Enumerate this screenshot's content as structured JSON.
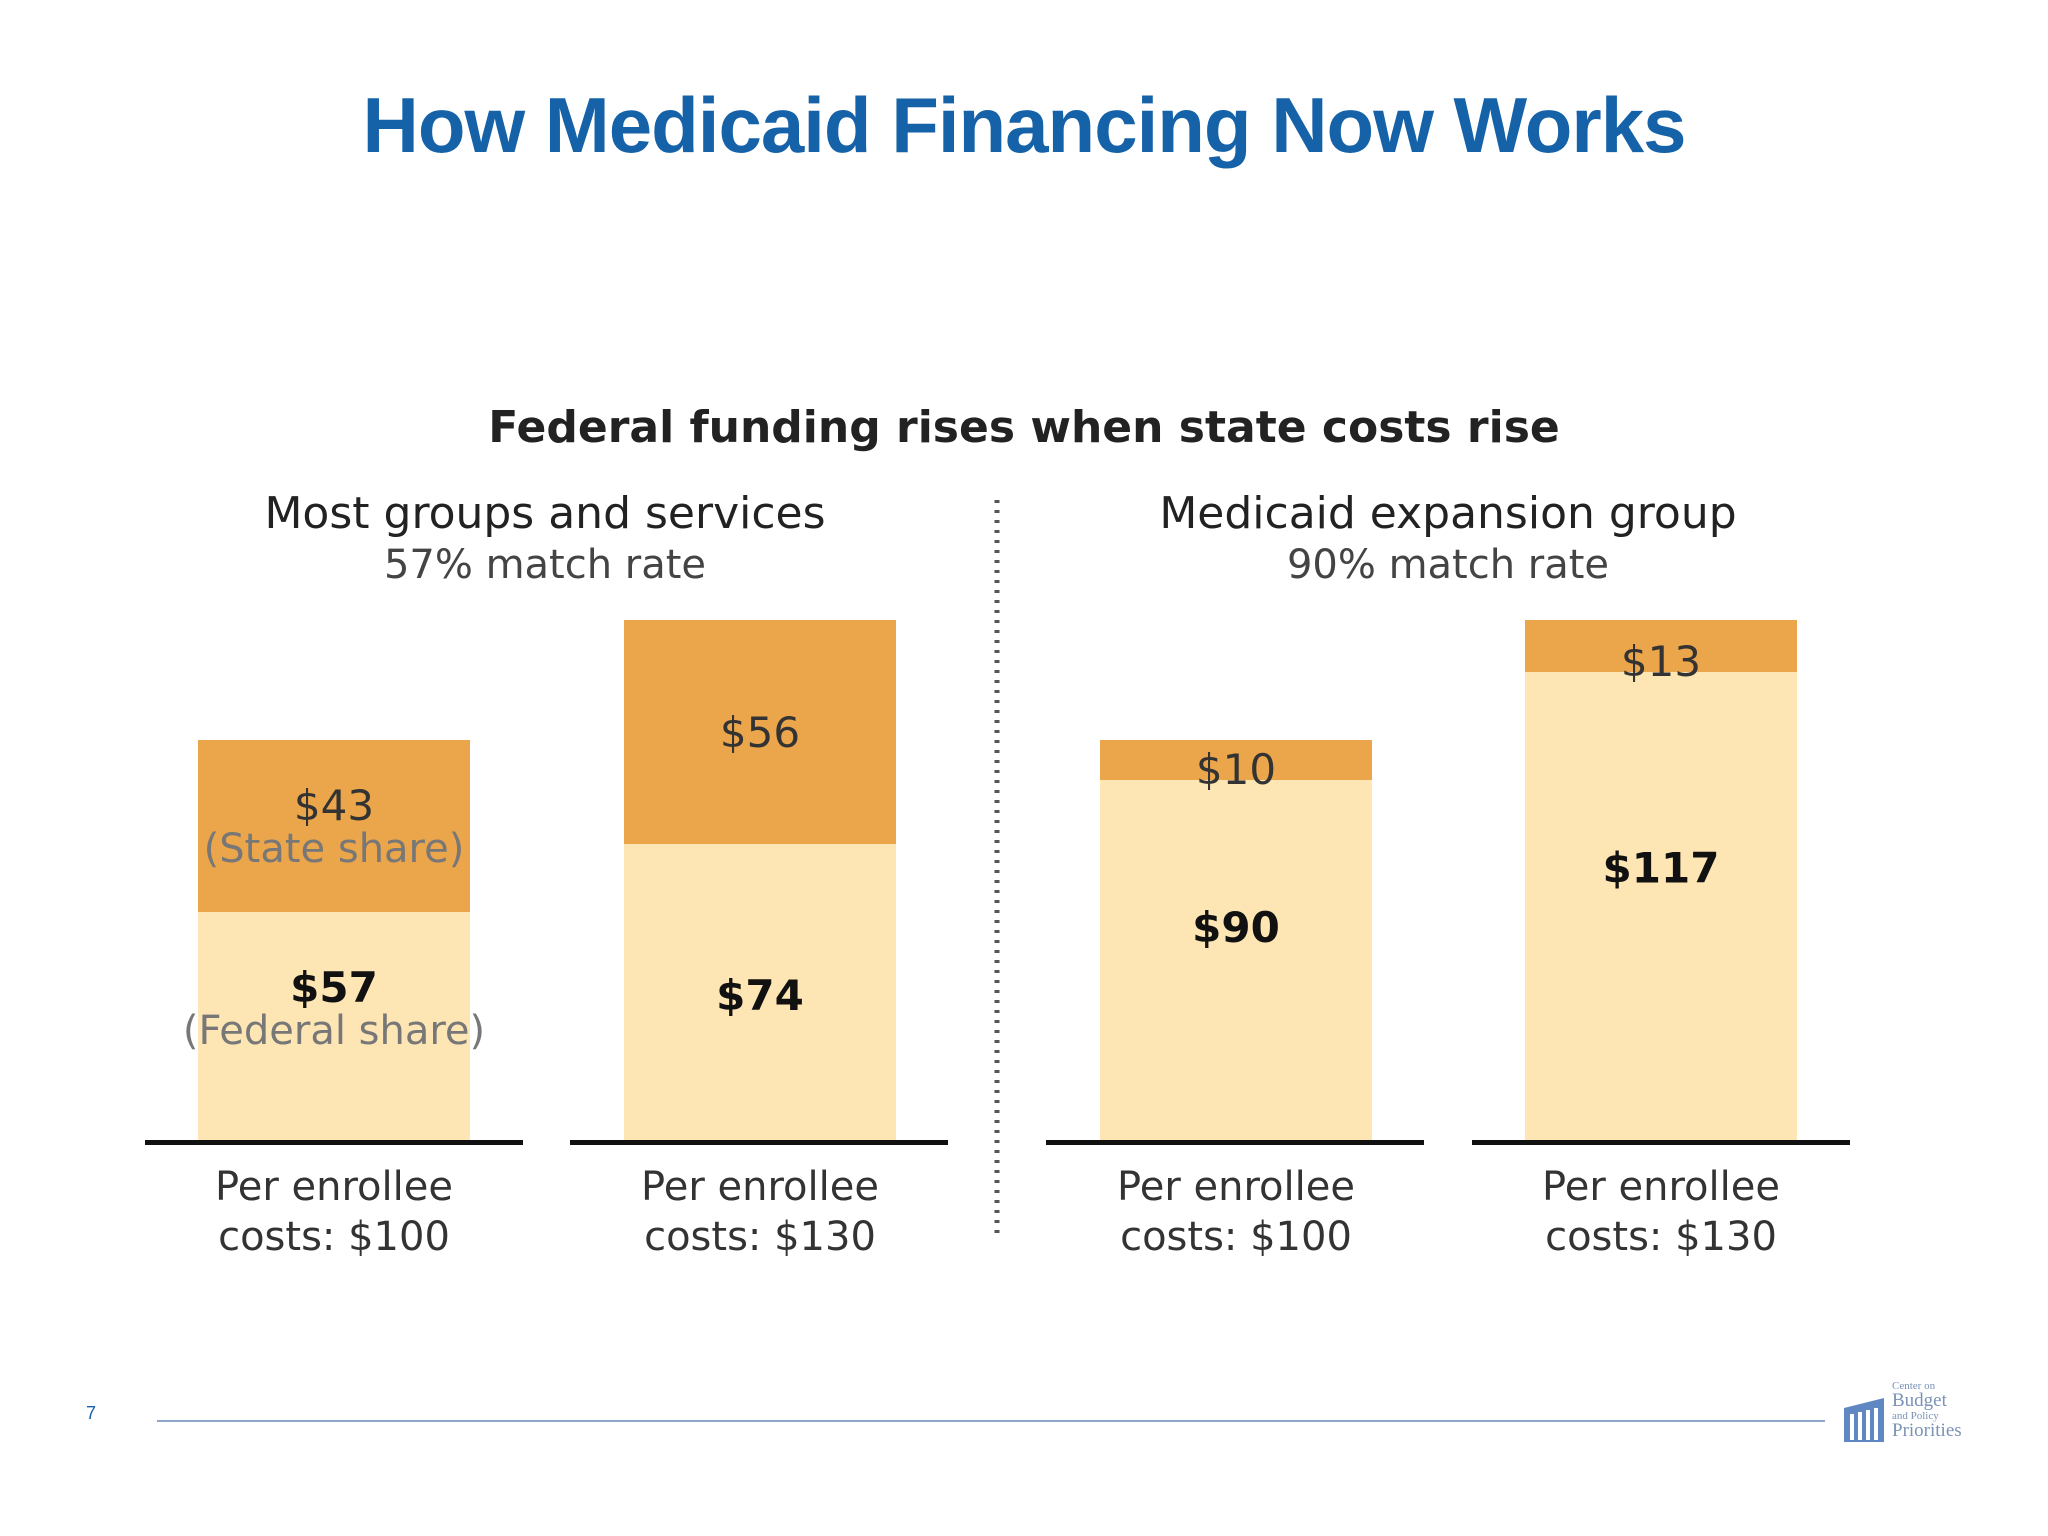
{
  "slide": {
    "title": "How Medicaid Financing Now Works",
    "page_number": "7",
    "logo": {
      "line1": "Center on",
      "line2": "Budget",
      "line3": "and Policy",
      "line4": "Priorities"
    }
  },
  "colors": {
    "title": "#1562a8",
    "state_share": "#eba54a",
    "federal_share": "#fde5b4",
    "baseline": "#111111",
    "divider": "#555555"
  },
  "chart_data": {
    "type": "bar",
    "stacked": true,
    "title": "Federal funding rises when state costs rise",
    "groups": [
      {
        "name": "Most groups and services",
        "subtitle": "57% match rate",
        "bars": [
          {
            "category": "Per enrollee costs: $100",
            "category_line1": "Per enrollee",
            "category_line2": "costs: $100",
            "federal": 57,
            "federal_label": "$57",
            "federal_note": "(Federal share)",
            "state": 43,
            "state_label": "$43",
            "state_note": "(State share)"
          },
          {
            "category": "Per enrollee costs: $130",
            "category_line1": "Per enrollee",
            "category_line2": "costs: $130",
            "federal": 74,
            "federal_label": "$74",
            "federal_note": "",
            "state": 56,
            "state_label": "$56",
            "state_note": ""
          }
        ]
      },
      {
        "name": "Medicaid expansion group",
        "subtitle": "90% match rate",
        "bars": [
          {
            "category": "Per enrollee costs: $100",
            "category_line1": "Per enrollee",
            "category_line2": "costs: $100",
            "federal": 90,
            "federal_label": "$90",
            "federal_note": "",
            "state": 10,
            "state_label": "$10",
            "state_note": ""
          },
          {
            "category": "Per enrollee costs: $130",
            "category_line1": "Per enrollee",
            "category_line2": "costs: $130",
            "federal": 117,
            "federal_label": "$117",
            "federal_note": "",
            "state": 13,
            "state_label": "$13",
            "state_note": ""
          }
        ]
      }
    ],
    "legend": "none",
    "grid": false
  }
}
